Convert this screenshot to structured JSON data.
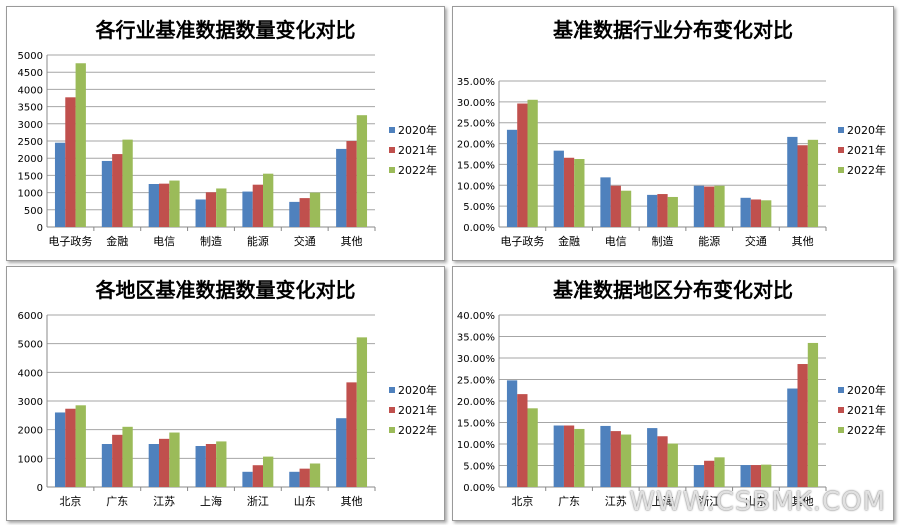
{
  "watermark": "WWW.CSBMK.COM",
  "colors": {
    "2020年": "#4f81bd",
    "2021年": "#c0504d",
    "2022年": "#9bbb59"
  },
  "chart_data": [
    {
      "type": "bar",
      "title": "各行业基准数据数量变化对比",
      "categories": [
        "电子政务",
        "金融",
        "电信",
        "制造",
        "能源",
        "交通",
        "其他"
      ],
      "series": [
        {
          "name": "2020年",
          "values": [
            2450,
            1920,
            1250,
            800,
            1030,
            730,
            2270
          ]
        },
        {
          "name": "2021年",
          "values": [
            3770,
            2120,
            1260,
            1010,
            1230,
            840,
            2500
          ]
        },
        {
          "name": "2022年",
          "values": [
            4760,
            2540,
            1350,
            1120,
            1550,
            1000,
            3250
          ]
        }
      ],
      "ylim": [
        0,
        5000
      ],
      "yticks": [
        "0",
        "500",
        "1000",
        "1500",
        "2000",
        "2500",
        "3000",
        "3500",
        "4000",
        "4500",
        "5000"
      ],
      "legend": "right",
      "grid": true
    },
    {
      "type": "bar",
      "title": "基准数据行业分布变化对比",
      "categories": [
        "电子政务",
        "金融",
        "电信",
        "制造",
        "能源",
        "交通",
        "其他"
      ],
      "series": [
        {
          "name": "2020年",
          "values": [
            23.3,
            18.3,
            11.9,
            7.7,
            9.9,
            7.0,
            21.6
          ]
        },
        {
          "name": "2021年",
          "values": [
            29.6,
            16.6,
            9.9,
            7.9,
            9.7,
            6.6,
            19.6
          ]
        },
        {
          "name": "2022年",
          "values": [
            30.5,
            16.3,
            8.7,
            7.2,
            9.9,
            6.4,
            20.9
          ]
        }
      ],
      "ylim": [
        0,
        35
      ],
      "yticks": [
        "0.00%",
        "5.00%",
        "10.00%",
        "15.00%",
        "20.00%",
        "25.00%",
        "30.00%",
        "35.00%"
      ],
      "legend": "right",
      "grid": true
    },
    {
      "type": "bar",
      "title": "各地区基准数据数量变化对比",
      "categories": [
        "北京",
        "广东",
        "江苏",
        "上海",
        "浙江",
        "山东",
        "其他"
      ],
      "series": [
        {
          "name": "2020年",
          "values": [
            2600,
            1500,
            1500,
            1430,
            530,
            530,
            2400
          ]
        },
        {
          "name": "2021年",
          "values": [
            2730,
            1820,
            1680,
            1500,
            760,
            640,
            3650
          ]
        },
        {
          "name": "2022年",
          "values": [
            2850,
            2100,
            1900,
            1590,
            1060,
            820,
            5220
          ]
        }
      ],
      "ylim": [
        0,
        6000
      ],
      "yticks": [
        "0",
        "1000",
        "2000",
        "3000",
        "4000",
        "5000",
        "6000"
      ],
      "legend": "right",
      "grid": true
    },
    {
      "type": "bar",
      "title": "基准数据地区分布变化对比",
      "categories": [
        "北京",
        "广东",
        "江苏",
        "上海",
        "浙江",
        "山东",
        "其他"
      ],
      "series": [
        {
          "name": "2020年",
          "values": [
            24.8,
            14.3,
            14.2,
            13.7,
            5.1,
            5.1,
            22.9
          ]
        },
        {
          "name": "2021年",
          "values": [
            21.6,
            14.3,
            13.0,
            11.8,
            6.1,
            5.1,
            28.6
          ]
        },
        {
          "name": "2022年",
          "values": [
            18.3,
            13.5,
            12.2,
            10.1,
            6.9,
            5.2,
            33.5
          ]
        }
      ],
      "ylim": [
        0,
        40
      ],
      "yticks": [
        "0.00%",
        "5.00%",
        "10.00%",
        "15.00%",
        "20.00%",
        "25.00%",
        "30.00%",
        "35.00%",
        "40.00%"
      ],
      "legend": "right",
      "grid": true
    }
  ]
}
